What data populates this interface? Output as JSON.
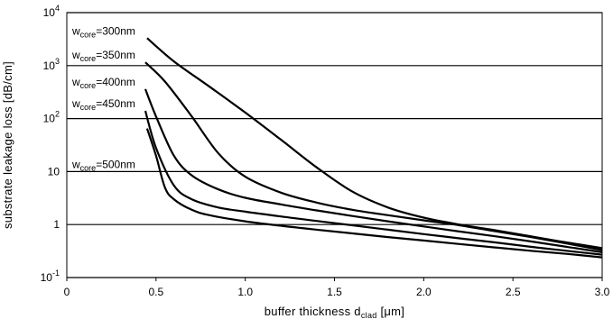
{
  "chart_data": {
    "type": "line",
    "xlabel": {
      "main": "buffer thickness d",
      "sub": "clad",
      "unit": " [μm]"
    },
    "ylabel": "substrate leakage loss [dB/cm]",
    "xlim": [
      0,
      3.0
    ],
    "ylim": [
      0.1,
      10000
    ],
    "yscale": "log",
    "grid": "horizontal",
    "x_ticks": [
      "0",
      "0.5",
      "1.0",
      "1.5",
      "2.0",
      "2.5",
      "3.0"
    ],
    "y_ticks": [
      {
        "value": 10000,
        "base": "10",
        "exp": "4"
      },
      {
        "value": 1000,
        "base": "10",
        "exp": "3"
      },
      {
        "value": 100,
        "base": "10",
        "exp": "2"
      },
      {
        "value": 10,
        "base": "10",
        "exp": ""
      },
      {
        "value": 1,
        "base": "1",
        "exp": ""
      },
      {
        "value": 0.1,
        "base": "10",
        "exp": "-1"
      }
    ],
    "series": [
      {
        "name": "300nm",
        "label_prefix": "w",
        "label_sub": "core",
        "label_value": "=300nm",
        "label_at": [
          0.01,
          3300
        ],
        "points": [
          [
            0.45,
            3300
          ],
          [
            0.6,
            1200
          ],
          [
            0.8,
            400
          ],
          [
            1.0,
            130
          ],
          [
            1.2,
            40
          ],
          [
            1.4,
            12
          ],
          [
            1.6,
            4.2
          ],
          [
            1.8,
            2.1
          ],
          [
            2.0,
            1.35
          ],
          [
            2.2,
            1.0
          ],
          [
            2.4,
            0.78
          ],
          [
            2.6,
            0.6
          ],
          [
            2.8,
            0.46
          ],
          [
            3.0,
            0.36
          ]
        ]
      },
      {
        "name": "350nm",
        "label_prefix": "w",
        "label_sub": "core",
        "label_value": "=350nm",
        "label_at": [
          0.01,
          1150
        ],
        "points": [
          [
            0.44,
            1150
          ],
          [
            0.55,
            500
          ],
          [
            0.7,
            110
          ],
          [
            0.85,
            22
          ],
          [
            1.0,
            8
          ],
          [
            1.2,
            4
          ],
          [
            1.4,
            2.6
          ],
          [
            1.6,
            1.9
          ],
          [
            1.8,
            1.5
          ],
          [
            2.0,
            1.2
          ],
          [
            2.2,
            0.97
          ],
          [
            2.4,
            0.75
          ],
          [
            2.6,
            0.58
          ],
          [
            2.8,
            0.44
          ],
          [
            3.0,
            0.33
          ]
        ]
      },
      {
        "name": "400nm",
        "label_prefix": "w",
        "label_sub": "core",
        "label_value": "=400nm",
        "label_at": [
          0.01,
          360
        ],
        "points": [
          [
            0.44,
            360
          ],
          [
            0.5,
            110
          ],
          [
            0.6,
            20
          ],
          [
            0.7,
            8.5
          ],
          [
            0.85,
            4.6
          ],
          [
            1.0,
            3.2
          ],
          [
            1.2,
            2.4
          ],
          [
            1.4,
            1.85
          ],
          [
            1.6,
            1.45
          ],
          [
            1.8,
            1.15
          ],
          [
            2.0,
            0.92
          ],
          [
            2.2,
            0.74
          ],
          [
            2.4,
            0.6
          ],
          [
            2.6,
            0.48
          ],
          [
            2.8,
            0.38
          ],
          [
            3.0,
            0.3
          ]
        ]
      },
      {
        "name": "450nm",
        "label_prefix": "w",
        "label_sub": "core",
        "label_value": "=450nm",
        "label_at": [
          0.01,
          140
        ],
        "points": [
          [
            0.44,
            140
          ],
          [
            0.5,
            28
          ],
          [
            0.6,
            5.5
          ],
          [
            0.7,
            3.0
          ],
          [
            0.85,
            2.1
          ],
          [
            1.0,
            1.75
          ],
          [
            1.2,
            1.42
          ],
          [
            1.4,
            1.17
          ],
          [
            1.6,
            0.97
          ],
          [
            1.8,
            0.8
          ],
          [
            2.0,
            0.66
          ],
          [
            2.2,
            0.55
          ],
          [
            2.4,
            0.46
          ],
          [
            2.6,
            0.38
          ],
          [
            2.8,
            0.32
          ],
          [
            3.0,
            0.27
          ]
        ]
      },
      {
        "name": "500nm",
        "label_prefix": "w",
        "label_sub": "core",
        "label_value": "=500nm",
        "label_at": [
          0.01,
          10
        ],
        "points": [
          [
            0.45,
            65
          ],
          [
            0.5,
            20
          ],
          [
            0.55,
            5
          ],
          [
            0.6,
            3.0
          ],
          [
            0.7,
            1.9
          ],
          [
            0.8,
            1.5
          ],
          [
            1.0,
            1.15
          ],
          [
            1.2,
            0.95
          ],
          [
            1.4,
            0.8
          ],
          [
            1.6,
            0.68
          ],
          [
            1.8,
            0.58
          ],
          [
            2.0,
            0.5
          ],
          [
            2.2,
            0.43
          ],
          [
            2.4,
            0.37
          ],
          [
            2.6,
            0.32
          ],
          [
            2.8,
            0.28
          ],
          [
            3.0,
            0.24
          ]
        ]
      }
    ]
  }
}
